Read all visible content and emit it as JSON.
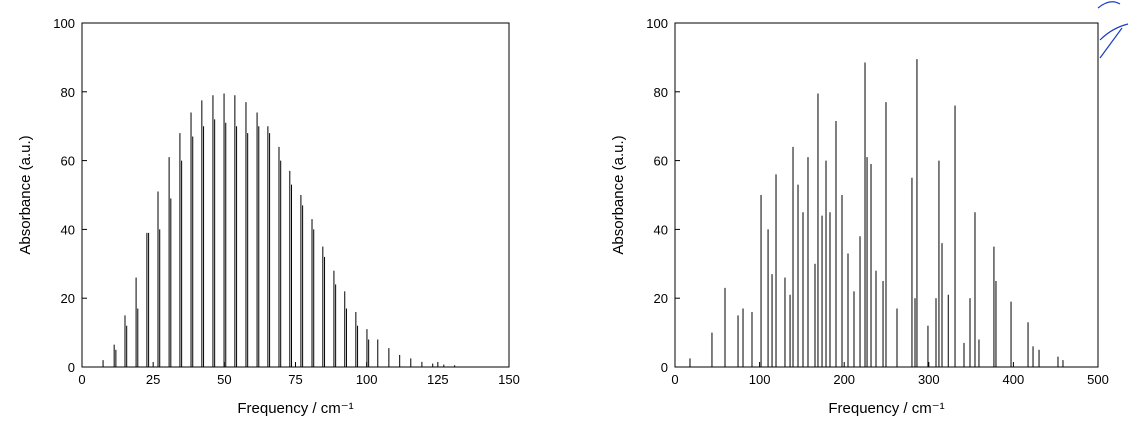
{
  "chart_data": [
    {
      "type": "stick",
      "xlabel": "Frequency / cm⁻¹",
      "ylabel": "Absorbance (a.u.)",
      "xlim": [
        0,
        150
      ],
      "xticks": [
        0,
        25,
        50,
        75,
        100,
        125,
        150
      ],
      "ylim": [
        0,
        100
      ],
      "yticks": [
        0,
        20,
        40,
        60,
        80,
        100
      ],
      "series": [
        {
          "color": "#000000",
          "x": [
            7.4,
            11.3,
            15.1,
            19.0,
            22.8,
            26.7,
            30.6,
            34.4,
            38.3,
            42.1,
            46.0,
            49.9,
            53.7,
            57.6,
            61.5,
            65.3,
            69.2,
            73.0,
            76.9,
            80.8,
            84.6,
            88.5,
            92.3,
            96.2,
            100.1,
            103.9,
            107.8,
            111.6,
            115.5,
            119.4,
            123.2,
            127.1,
            130.9
          ],
          "values": [
            2,
            6.5,
            15,
            26,
            39,
            51,
            61,
            68,
            74,
            77.5,
            79,
            79.5,
            79,
            77,
            74,
            70,
            64,
            57,
            50,
            43,
            35,
            28,
            22,
            16,
            11,
            8,
            5.5,
            3.5,
            2.5,
            1.5,
            1,
            0.7,
            0.5
          ]
        },
        {
          "color": "#000000",
          "x": [
            11.9,
            15.7,
            19.6,
            23.4,
            27.3,
            31.2,
            35.0,
            38.9,
            42.7,
            46.6,
            50.5,
            54.3,
            58.2,
            62.1,
            65.9,
            69.8,
            73.6,
            77.5,
            81.4,
            85.2,
            89.1,
            92.9,
            96.8,
            100.7
          ],
          "values": [
            5,
            12,
            17,
            39,
            40,
            49,
            60,
            67,
            70,
            72,
            71,
            70,
            68,
            70,
            68,
            60,
            53,
            47,
            40,
            32,
            24,
            17,
            12,
            8
          ]
        }
      ]
    },
    {
      "type": "stick",
      "xlabel": "Frequency / cm⁻¹",
      "ylabel": "Absorbance (a.u.)",
      "xlim": [
        0,
        500
      ],
      "xticks": [
        0,
        100,
        200,
        300,
        400,
        500
      ],
      "ylim": [
        0,
        100
      ],
      "yticks": [
        0,
        20,
        40,
        60,
        80,
        100
      ],
      "series": [
        {
          "color": "#000000",
          "x": [
            17.7,
            43.7,
            59.1,
            74.5,
            80.4,
            91,
            101.7,
            110,
            114.7,
            119.4,
            130,
            136,
            139.5,
            145.4,
            151.3,
            157.2,
            165.5,
            169,
            173.8,
            178.5,
            183.2,
            190.3,
            197.4,
            204.5,
            211.6,
            218.7,
            224.6,
            227,
            231.7,
            237.6,
            245.9,
            249.4,
            262.4,
            280.1,
            283.7,
            286,
            299,
            308.5,
            312,
            315.6,
            323,
            331,
            341.6,
            348.7,
            354.6,
            359.3,
            377,
            379.4,
            397.2,
            417.3,
            423.2,
            430.3,
            452.7,
            458.6
          ],
          "values": [
            2.5,
            10,
            23,
            15,
            17,
            16,
            50,
            40,
            27,
            56,
            26,
            21,
            64,
            53,
            45,
            61,
            30,
            79.5,
            44,
            60,
            45,
            71.5,
            50,
            33,
            22,
            38,
            88.5,
            61,
            59,
            28,
            25,
            77,
            17,
            55,
            20,
            89.5,
            12,
            20,
            60,
            36,
            21,
            76,
            7,
            20,
            45,
            8,
            35,
            25,
            19,
            13,
            6,
            5,
            3,
            2
          ]
        }
      ]
    }
  ]
}
